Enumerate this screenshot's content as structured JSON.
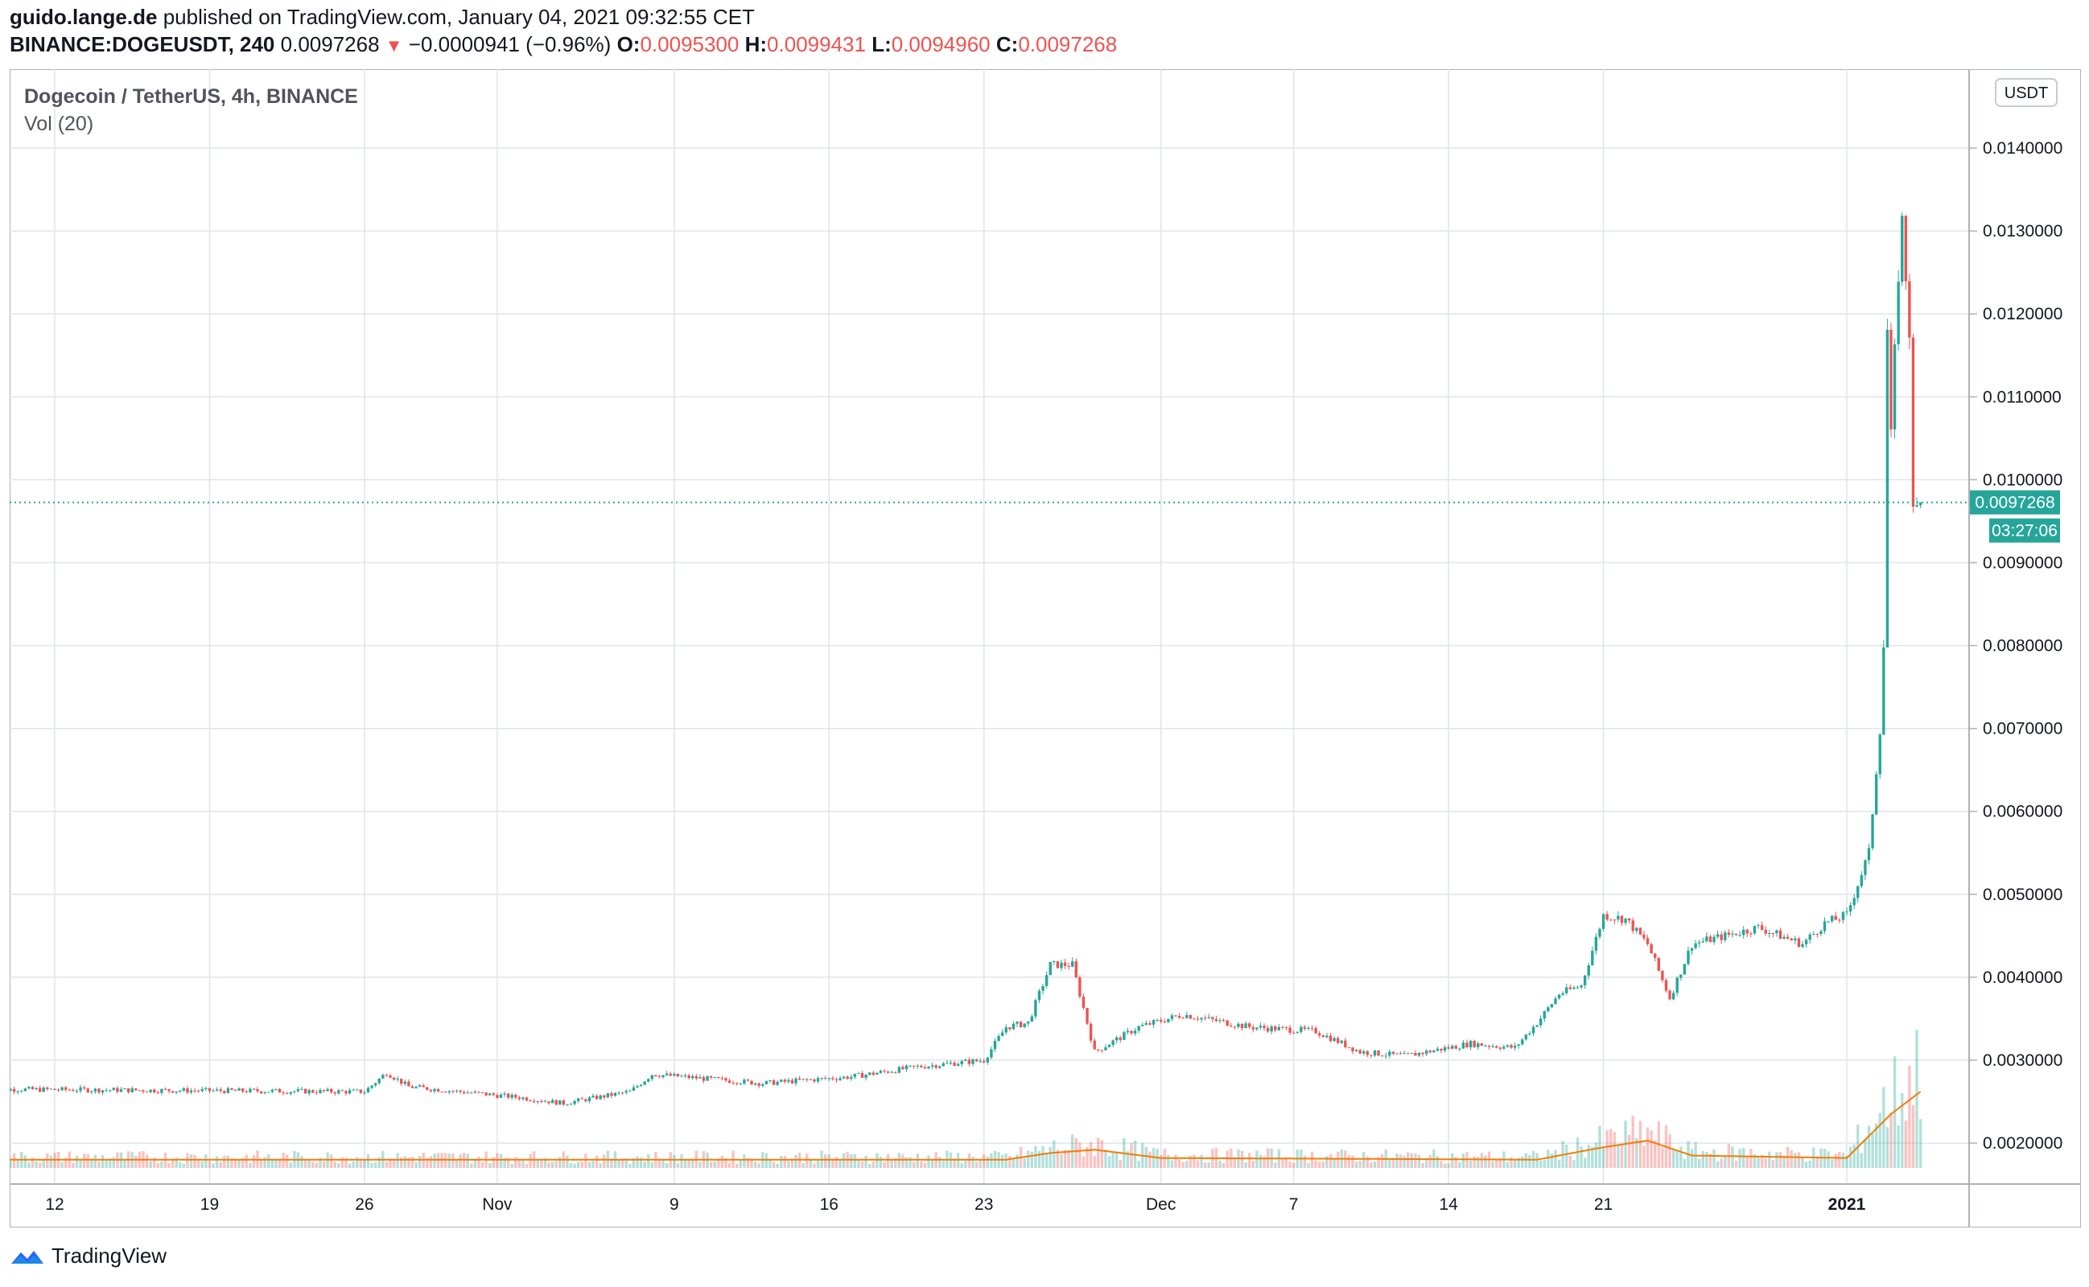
{
  "header": {
    "publisher": "guido.lange.de",
    "published_text": "published on TradingView.com, January 04, 2021 09:32:55 CET",
    "symbol": "BINANCE:DOGEUSDT, 240",
    "last": "0.0097268",
    "change": "−0.0000941 (−0.96%)",
    "o_label": "O:",
    "o_value": "0.0095300",
    "h_label": "H:",
    "h_value": "0.0099431",
    "l_label": "L:",
    "l_value": "0.0094960",
    "c_label": "C:",
    "c_value": "0.0097268"
  },
  "chart_data": {
    "type": "candlestick",
    "title": "Dogecoin / TetherUS, 4h, BINANCE",
    "indicator": "Vol (20)",
    "currency_button": "USDT",
    "y_ticks": [
      "0.0140000",
      "0.0130000",
      "0.0120000",
      "0.0110000",
      "0.0100000",
      "0.0090000",
      "0.0080000",
      "0.0070000",
      "0.0060000",
      "0.0050000",
      "0.0040000",
      "0.0030000",
      "0.0020000"
    ],
    "ylim": [
      0.0017,
      0.01435
    ],
    "x_ticks": [
      "12",
      "19",
      "26",
      "Nov",
      "9",
      "16",
      "23",
      "Dec",
      "7",
      "14",
      "21",
      "2021"
    ],
    "last_price_label": "0.0097268",
    "countdown_label": "03:27:06",
    "last_price": 0.0097268,
    "close_keypoints": [
      [
        "2020-10-09",
        0.00265
      ],
      [
        "2020-10-26",
        0.00262
      ],
      [
        "2020-10-27",
        0.00285
      ],
      [
        "2020-10-28",
        0.00268
      ],
      [
        "2020-11-02",
        0.00255
      ],
      [
        "2020-11-04",
        0.00248
      ],
      [
        "2020-11-07",
        0.00262
      ],
      [
        "2020-11-08",
        0.00283
      ],
      [
        "2020-11-13",
        0.00272
      ],
      [
        "2020-11-17",
        0.0028
      ],
      [
        "2020-11-20",
        0.00292
      ],
      [
        "2020-11-23",
        0.003
      ],
      [
        "2020-11-24",
        0.0034
      ],
      [
        "2020-11-25",
        0.00345
      ],
      [
        "2020-11-26",
        0.00415
      ],
      [
        "2020-11-27",
        0.00415
      ],
      [
        "2020-11-28",
        0.0031
      ],
      [
        "2020-11-30",
        0.0034
      ],
      [
        "2020-12-02",
        0.00355
      ],
      [
        "2020-12-05",
        0.0034
      ],
      [
        "2020-12-08",
        0.00335
      ],
      [
        "2020-12-10",
        0.0031
      ],
      [
        "2020-12-12",
        0.00305
      ],
      [
        "2020-12-15",
        0.0032
      ],
      [
        "2020-12-17",
        0.00315
      ],
      [
        "2020-12-18",
        0.00345
      ],
      [
        "2020-12-19",
        0.0038
      ],
      [
        "2020-12-20",
        0.0039
      ],
      [
        "2020-12-21",
        0.00475
      ],
      [
        "2020-12-22",
        0.0047
      ],
      [
        "2020-12-23",
        0.0044
      ],
      [
        "2020-12-24",
        0.00375
      ],
      [
        "2020-12-25",
        0.0044
      ],
      [
        "2020-12-28",
        0.0046
      ],
      [
        "2020-12-30",
        0.0044
      ],
      [
        "2020-12-31",
        0.00465
      ],
      [
        "2021-01-01",
        0.00475
      ],
      [
        "2021-01-02",
        0.0055
      ],
      [
        "2021-01-02 12h",
        0.007
      ],
      [
        "2021-01-02 16h",
        0.008
      ],
      [
        "2021-01-02 20h",
        0.0118
      ],
      [
        "2021-01-03",
        0.0105
      ],
      [
        "2021-01-03 08h",
        0.0125
      ],
      [
        "2021-01-03 12h",
        0.0131
      ],
      [
        "2021-01-03 20h",
        0.0118
      ],
      [
        "2021-01-04",
        0.0096
      ],
      [
        "2021-01-04 08h",
        0.0097268
      ]
    ],
    "volume_ma_keypoints": [
      [
        "2020-10-09",
        0.0018
      ],
      [
        "2020-11-24",
        0.0018
      ],
      [
        "2020-11-26",
        0.00188
      ],
      [
        "2020-11-28",
        0.00192
      ],
      [
        "2020-12-01",
        0.00182
      ],
      [
        "2020-12-18",
        0.0018
      ],
      [
        "2020-12-21",
        0.00195
      ],
      [
        "2020-12-23",
        0.00203
      ],
      [
        "2020-12-25",
        0.00185
      ],
      [
        "2021-01-01",
        0.00182
      ],
      [
        "2021-01-03",
        0.00235
      ],
      [
        "2021-01-04 08h",
        0.00262
      ]
    ],
    "colors": {
      "up": "#26a69a",
      "down": "#ef5350",
      "vol_ma": "#f57c00",
      "grid": "#e0e3eb",
      "last_price_bg": "#26a69a"
    }
  },
  "footer": {
    "brand": "TradingView"
  }
}
